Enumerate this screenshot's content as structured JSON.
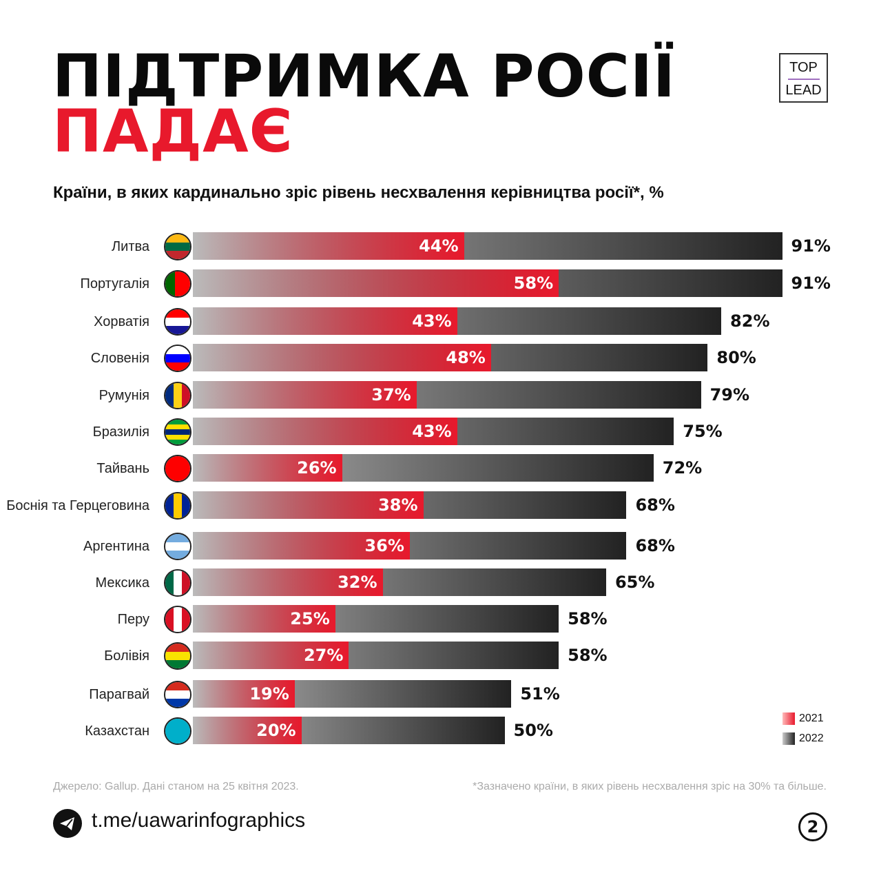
{
  "title_line1": "ПІДТРИМКА РОСІЇ",
  "title_line2": "ПАДАЄ",
  "logo": {
    "top": "TOP",
    "bottom": "LEAD"
  },
  "chart_data": {
    "type": "bar",
    "title": "Країни, в яких кардинально зріс рівень несхвалення керівництва росії*, %",
    "categories": [
      "Литва",
      "Португалія",
      "Хорватія",
      "Словенія",
      "Румунія",
      "Бразилія",
      "Тайвань",
      "Боснія та Герцеговина",
      "Аргентина",
      "Мексика",
      "Перу",
      "Болівія",
      "Парагвай",
      "Казахстан"
    ],
    "series": [
      {
        "name": "2021",
        "color": "#e8192c",
        "values": [
          44,
          58,
          43,
          48,
          37,
          43,
          26,
          38,
          36,
          32,
          25,
          27,
          19,
          20
        ]
      },
      {
        "name": "2022",
        "color": "#222222",
        "values": [
          91,
          91,
          82,
          80,
          79,
          75,
          72,
          68,
          68,
          65,
          58,
          58,
          51,
          50
        ]
      }
    ],
    "value_labels_2021": [
      "44%",
      "58%",
      "43%",
      "48%",
      "37%",
      "43%",
      "26%",
      "38%",
      "36%",
      "32%",
      "25%",
      "27%",
      "19%",
      "20%"
    ],
    "value_labels_2022": [
      "91%",
      "91%",
      "82%",
      "80%",
      "79%",
      "75%",
      "72%",
      "68%",
      "68%",
      "65%",
      "58%",
      "58%",
      "51%",
      "50%"
    ],
    "legend": [
      "2021",
      "2022"
    ],
    "legend_placement": "bottom-right"
  },
  "flags": [
    {
      "dir": "h",
      "c": [
        "#fdb913",
        "#006a44",
        "#c1272d"
      ]
    },
    {
      "dir": "v",
      "c": [
        "#006600",
        "#006600",
        "#ff0000",
        "#ff0000",
        "#ff0000"
      ]
    },
    {
      "dir": "h",
      "c": [
        "#ff0000",
        "#ffffff",
        "#171796"
      ]
    },
    {
      "dir": "h",
      "c": [
        "#ffffff",
        "#0000ff",
        "#ff0000"
      ]
    },
    {
      "dir": "v",
      "c": [
        "#002b7f",
        "#fcd116",
        "#ce1126"
      ]
    },
    {
      "dir": "h",
      "c": [
        "#009c3b",
        "#ffdf00",
        "#002776",
        "#ffdf00",
        "#009c3b"
      ]
    },
    {
      "dir": "h",
      "c": [
        "#fe0000",
        "#fe0000",
        "#fe0000"
      ]
    },
    {
      "dir": "v",
      "c": [
        "#002395",
        "#fecb00",
        "#002395"
      ]
    },
    {
      "dir": "h",
      "c": [
        "#74acdf",
        "#ffffff",
        "#74acdf"
      ]
    },
    {
      "dir": "v",
      "c": [
        "#006847",
        "#ffffff",
        "#ce1126"
      ]
    },
    {
      "dir": "v",
      "c": [
        "#d91023",
        "#ffffff",
        "#d91023"
      ]
    },
    {
      "dir": "h",
      "c": [
        "#d52b1e",
        "#f9e300",
        "#007934"
      ]
    },
    {
      "dir": "h",
      "c": [
        "#d52b1e",
        "#ffffff",
        "#0038a8"
      ]
    },
    {
      "dir": "h",
      "c": [
        "#00afca",
        "#00afca",
        "#00afca"
      ]
    }
  ],
  "footer": {
    "source": "Джерело: Gallup. Дані станом на 25 квітня 2023.",
    "note": "*Зазначено країни, в яких рівень несхвалення зріс на 30% та більше.",
    "url": "t.me/uawarinfographics",
    "page": "2"
  }
}
